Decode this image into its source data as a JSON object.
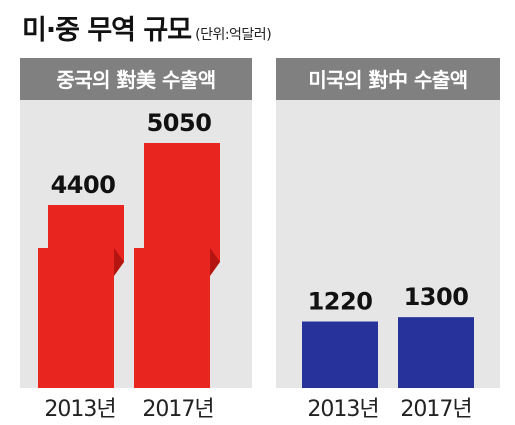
{
  "header": {
    "title": "미·중 무역 규모",
    "unit": "(단위:억달러)"
  },
  "colors": {
    "china_bar": "#e8251f",
    "china_bar_dark": "#b51510",
    "us_bar": "#27329a",
    "panel_bg": "#e6e6e6",
    "panel_header": "#808080"
  },
  "chart_data": [
    {
      "type": "bar",
      "title": "중국의 對美 수출액",
      "categories": [
        "2013년",
        "2017년"
      ],
      "values": [
        4400,
        5050
      ],
      "value_labels": [
        "4400",
        "5050"
      ],
      "color": "#e8251f",
      "broken_axis": true
    },
    {
      "type": "bar",
      "title": "미국의 對中 수출액",
      "categories": [
        "2013년",
        "2017년"
      ],
      "values": [
        1220,
        1300
      ],
      "value_labels": [
        "1220",
        "1300"
      ],
      "color": "#27329a"
    }
  ]
}
